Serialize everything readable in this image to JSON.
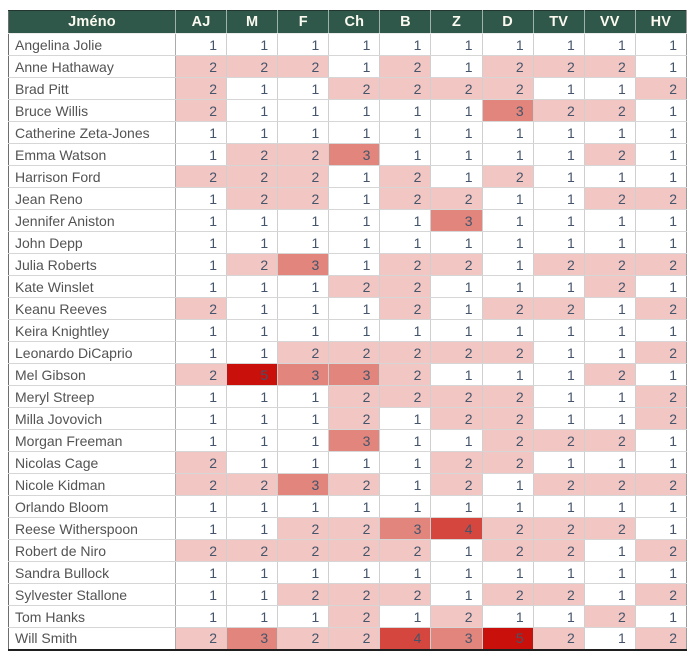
{
  "table": {
    "header": {
      "name_label": "Jméno",
      "columns": [
        "AJ",
        "M",
        "F",
        "Ch",
        "B",
        "Z",
        "D",
        "TV",
        "VV",
        "HV"
      ]
    },
    "rows": [
      {
        "name": "Angelina Jolie",
        "values": [
          1,
          1,
          1,
          1,
          1,
          1,
          1,
          1,
          1,
          1
        ]
      },
      {
        "name": "Anne Hathaway",
        "values": [
          2,
          2,
          2,
          1,
          2,
          1,
          2,
          2,
          2,
          1
        ]
      },
      {
        "name": "Brad Pitt",
        "values": [
          2,
          1,
          1,
          2,
          2,
          2,
          2,
          1,
          1,
          2
        ]
      },
      {
        "name": "Bruce Willis",
        "values": [
          2,
          1,
          1,
          1,
          1,
          1,
          3,
          2,
          2,
          1
        ]
      },
      {
        "name": "Catherine Zeta-Jones",
        "values": [
          1,
          1,
          1,
          1,
          1,
          1,
          1,
          1,
          1,
          1
        ]
      },
      {
        "name": "Emma Watson",
        "values": [
          1,
          2,
          2,
          3,
          1,
          1,
          1,
          1,
          2,
          1
        ]
      },
      {
        "name": "Harrison Ford",
        "values": [
          2,
          2,
          2,
          1,
          2,
          1,
          2,
          1,
          1,
          1
        ]
      },
      {
        "name": "Jean Reno",
        "values": [
          1,
          2,
          2,
          1,
          2,
          2,
          1,
          1,
          2,
          2
        ]
      },
      {
        "name": "Jennifer Aniston",
        "values": [
          1,
          1,
          1,
          1,
          1,
          3,
          1,
          1,
          1,
          1
        ]
      },
      {
        "name": "John Depp",
        "values": [
          1,
          1,
          1,
          1,
          1,
          1,
          1,
          1,
          1,
          1
        ]
      },
      {
        "name": "Julia Roberts",
        "values": [
          1,
          2,
          3,
          1,
          2,
          2,
          1,
          2,
          2,
          2
        ]
      },
      {
        "name": "Kate Winslet",
        "values": [
          1,
          1,
          1,
          2,
          2,
          1,
          1,
          1,
          2,
          1
        ]
      },
      {
        "name": "Keanu Reeves",
        "values": [
          2,
          1,
          1,
          1,
          2,
          1,
          2,
          2,
          1,
          2
        ]
      },
      {
        "name": "Keira Knightley",
        "values": [
          1,
          1,
          1,
          1,
          1,
          1,
          1,
          1,
          1,
          1
        ]
      },
      {
        "name": "Leonardo DiCaprio",
        "values": [
          1,
          1,
          2,
          2,
          2,
          2,
          2,
          1,
          1,
          2
        ]
      },
      {
        "name": "Mel Gibson",
        "values": [
          2,
          5,
          3,
          3,
          2,
          1,
          1,
          1,
          2,
          1
        ]
      },
      {
        "name": "Meryl Streep",
        "values": [
          1,
          1,
          1,
          2,
          2,
          2,
          2,
          1,
          1,
          2
        ]
      },
      {
        "name": "Milla Jovovich",
        "values": [
          1,
          1,
          1,
          2,
          1,
          2,
          2,
          1,
          1,
          2
        ]
      },
      {
        "name": "Morgan Freeman",
        "values": [
          1,
          1,
          1,
          3,
          1,
          1,
          2,
          2,
          2,
          1
        ]
      },
      {
        "name": "Nicolas Cage",
        "values": [
          2,
          1,
          1,
          1,
          1,
          2,
          2,
          1,
          1,
          1
        ]
      },
      {
        "name": "Nicole Kidman",
        "values": [
          2,
          2,
          3,
          2,
          1,
          2,
          1,
          2,
          2,
          2
        ]
      },
      {
        "name": "Orlando Bloom",
        "values": [
          1,
          1,
          1,
          1,
          1,
          1,
          1,
          1,
          1,
          1
        ]
      },
      {
        "name": "Reese Witherspoon",
        "values": [
          1,
          1,
          2,
          2,
          3,
          4,
          2,
          2,
          2,
          1
        ]
      },
      {
        "name": "Robert de Niro",
        "values": [
          2,
          2,
          2,
          2,
          2,
          1,
          2,
          2,
          1,
          2
        ]
      },
      {
        "name": "Sandra Bullock",
        "values": [
          1,
          1,
          1,
          1,
          1,
          1,
          1,
          1,
          1,
          1
        ]
      },
      {
        "name": "Sylvester Stallone",
        "values": [
          1,
          1,
          2,
          2,
          2,
          1,
          2,
          2,
          1,
          2
        ]
      },
      {
        "name": "Tom Hanks",
        "values": [
          1,
          1,
          1,
          2,
          1,
          2,
          1,
          1,
          2,
          1
        ]
      },
      {
        "name": "Will Smith",
        "values": [
          2,
          3,
          2,
          2,
          4,
          3,
          5,
          2,
          1,
          2
        ]
      }
    ]
  },
  "theme": {
    "header_bg": "#2F584A",
    "header_text": "#FBF9F0",
    "name_text": "#535353",
    "value_text": "#44546A",
    "value_colors": {
      "1": "#FFFFFF",
      "2": "#F2C6C3",
      "3": "#E1857D",
      "4": "#D5473E",
      "5": "#C9100B"
    }
  },
  "chart_data": {
    "type": "heatmap",
    "title": "",
    "row_header_label": "Jméno",
    "columns": [
      "AJ",
      "M",
      "F",
      "Ch",
      "B",
      "Z",
      "D",
      "TV",
      "VV",
      "HV"
    ],
    "rows": [
      "Angelina Jolie",
      "Anne Hathaway",
      "Brad Pitt",
      "Bruce Willis",
      "Catherine Zeta-Jones",
      "Emma Watson",
      "Harrison Ford",
      "Jean Reno",
      "Jennifer Aniston",
      "John Depp",
      "Julia Roberts",
      "Kate Winslet",
      "Keanu Reeves",
      "Keira Knightley",
      "Leonardo DiCaprio",
      "Mel Gibson",
      "Meryl Streep",
      "Milla Jovovich",
      "Morgan Freeman",
      "Nicolas Cage",
      "Nicole Kidman",
      "Orlando Bloom",
      "Reese Witherspoon",
      "Robert de Niro",
      "Sandra Bullock",
      "Sylvester Stallone",
      "Tom Hanks",
      "Will Smith"
    ],
    "values": [
      [
        1,
        1,
        1,
        1,
        1,
        1,
        1,
        1,
        1,
        1
      ],
      [
        2,
        2,
        2,
        1,
        2,
        1,
        2,
        2,
        2,
        1
      ],
      [
        2,
        1,
        1,
        2,
        2,
        2,
        2,
        1,
        1,
        2
      ],
      [
        2,
        1,
        1,
        1,
        1,
        1,
        3,
        2,
        2,
        1
      ],
      [
        1,
        1,
        1,
        1,
        1,
        1,
        1,
        1,
        1,
        1
      ],
      [
        1,
        2,
        2,
        3,
        1,
        1,
        1,
        1,
        2,
        1
      ],
      [
        2,
        2,
        2,
        1,
        2,
        1,
        2,
        1,
        1,
        1
      ],
      [
        1,
        2,
        2,
        1,
        2,
        2,
        1,
        1,
        2,
        2
      ],
      [
        1,
        1,
        1,
        1,
        1,
        3,
        1,
        1,
        1,
        1
      ],
      [
        1,
        1,
        1,
        1,
        1,
        1,
        1,
        1,
        1,
        1
      ],
      [
        1,
        2,
        3,
        1,
        2,
        2,
        1,
        2,
        2,
        2
      ],
      [
        1,
        1,
        1,
        2,
        2,
        1,
        1,
        1,
        2,
        1
      ],
      [
        2,
        1,
        1,
        1,
        2,
        1,
        2,
        2,
        1,
        2
      ],
      [
        1,
        1,
        1,
        1,
        1,
        1,
        1,
        1,
        1,
        1
      ],
      [
        1,
        1,
        2,
        2,
        2,
        2,
        2,
        1,
        1,
        2
      ],
      [
        2,
        5,
        3,
        3,
        2,
        1,
        1,
        1,
        2,
        1
      ],
      [
        1,
        1,
        1,
        2,
        2,
        2,
        2,
        1,
        1,
        2
      ],
      [
        1,
        1,
        1,
        2,
        1,
        2,
        2,
        1,
        1,
        2
      ],
      [
        1,
        1,
        1,
        3,
        1,
        1,
        2,
        2,
        2,
        1
      ],
      [
        2,
        1,
        1,
        1,
        1,
        2,
        2,
        1,
        1,
        1
      ],
      [
        2,
        2,
        3,
        2,
        1,
        2,
        1,
        2,
        2,
        2
      ],
      [
        1,
        1,
        1,
        1,
        1,
        1,
        1,
        1,
        1,
        1
      ],
      [
        1,
        1,
        2,
        2,
        3,
        4,
        2,
        2,
        2,
        1
      ],
      [
        2,
        2,
        2,
        2,
        2,
        1,
        2,
        2,
        1,
        2
      ],
      [
        1,
        1,
        1,
        1,
        1,
        1,
        1,
        1,
        1,
        1
      ],
      [
        1,
        1,
        2,
        2,
        2,
        1,
        2,
        2,
        1,
        2
      ],
      [
        1,
        1,
        1,
        2,
        1,
        2,
        1,
        1,
        2,
        1
      ],
      [
        2,
        3,
        2,
        2,
        4,
        3,
        5,
        2,
        1,
        2
      ]
    ],
    "value_range": [
      1,
      5
    ],
    "color_scale": {
      "min_color": "#FFFFFF",
      "max_color": "#C9100B"
    },
    "legend": "none",
    "grid": true
  }
}
